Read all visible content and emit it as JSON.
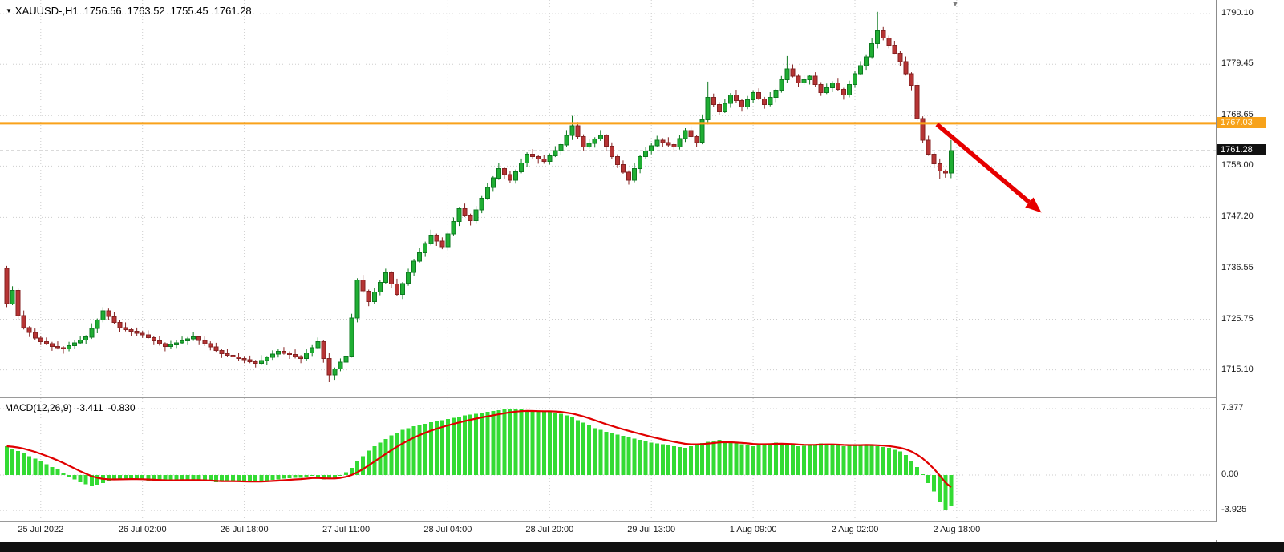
{
  "window": {
    "info": {
      "marker": "▼",
      "symbol_period": "XAUUSD-,H1",
      "open": "1756.56",
      "high": "1763.52",
      "low": "1755.45",
      "close": "1761.28"
    },
    "macd_info": {
      "name": "MACD(12,26,9)",
      "value": "-3.411",
      "signal": "-0.830"
    },
    "shift_marker": "▼"
  },
  "axis": {
    "hline_label": "1767.03",
    "bid_label": "1761.28"
  },
  "colors": {
    "grid": "#cdcdcd",
    "candle_up": "#1fae33",
    "candle_up_border": "#0e7a20",
    "candle_down": "#b63434",
    "candle_down_border": "#842222",
    "macd_bar": "#33db33",
    "macd_signal": "#e00000",
    "hline": "#f9a21b",
    "bid_line": "#b4b4b4",
    "arrow": "#e60000"
  },
  "chart_data": {
    "type": "candlestick_with_macd",
    "title": "XAUUSD- H1 candlestick chart with MACD(12,26,9)",
    "price_axis_ticks": [
      1790.1,
      1779.45,
      1768.65,
      1758.0,
      1747.2,
      1736.55,
      1725.75,
      1715.1
    ],
    "price_ylim": [
      1709.3,
      1793.0
    ],
    "hline": 1767.03,
    "bid": 1761.28,
    "x_ticks": [
      {
        "label": "25 Jul 2022",
        "candle": 6
      },
      {
        "label": "26 Jul 02:00",
        "candle": 24
      },
      {
        "label": "26 Jul 18:00",
        "candle": 42
      },
      {
        "label": "27 Jul 11:00",
        "candle": 60
      },
      {
        "label": "28 Jul 04:00",
        "candle": 78
      },
      {
        "label": "28 Jul 20:00",
        "candle": 96
      },
      {
        "label": "29 Jul 13:00",
        "candle": 114
      },
      {
        "label": "1 Aug 09:00",
        "candle": 132
      },
      {
        "label": "2 Aug 02:00",
        "candle": 150
      },
      {
        "label": "2 Aug 18:00",
        "candle": 168
      }
    ],
    "first_open": 1736.5,
    "closes": [
      1729.0,
      1731.8,
      1726.5,
      1724.0,
      1723.0,
      1721.8,
      1721.0,
      1720.6,
      1720.0,
      1719.8,
      1719.5,
      1720.2,
      1720.8,
      1721.4,
      1722.0,
      1723.8,
      1725.6,
      1727.5,
      1726.3,
      1725.1,
      1724.0,
      1723.6,
      1723.2,
      1722.8,
      1722.5,
      1721.9,
      1721.2,
      1720.6,
      1720.0,
      1720.4,
      1720.8,
      1721.2,
      1721.6,
      1722.0,
      1721.3,
      1720.6,
      1719.9,
      1719.2,
      1718.5,
      1718.2,
      1717.8,
      1717.5,
      1717.2,
      1716.8,
      1716.5,
      1717.1,
      1717.7,
      1718.4,
      1719.0,
      1718.6,
      1718.3,
      1717.9,
      1717.5,
      1718.7,
      1719.8,
      1721.0,
      1717.5,
      1714.0,
      1715.3,
      1716.7,
      1718.0,
      1726.0,
      1734.0,
      1731.7,
      1729.5,
      1731.5,
      1733.5,
      1735.5,
      1733.2,
      1731.0,
      1733.3,
      1735.6,
      1738.0,
      1739.8,
      1741.7,
      1743.5,
      1742.2,
      1741.0,
      1743.7,
      1746.3,
      1749.0,
      1747.7,
      1746.5,
      1748.8,
      1751.2,
      1753.5,
      1755.5,
      1757.5,
      1756.2,
      1755.0,
      1756.8,
      1758.7,
      1760.5,
      1760.0,
      1759.5,
      1759.0,
      1760.2,
      1761.3,
      1762.5,
      1764.5,
      1766.5,
      1764.2,
      1762.0,
      1762.8,
      1763.7,
      1764.5,
      1762.2,
      1760.0,
      1758.3,
      1756.7,
      1755.0,
      1757.5,
      1760.0,
      1761.2,
      1762.3,
      1763.5,
      1763.0,
      1762.5,
      1762.0,
      1763.8,
      1765.5,
      1764.2,
      1763.0,
      1767.8,
      1772.5,
      1771.0,
      1769.5,
      1771.2,
      1773.0,
      1771.8,
      1770.5,
      1772.0,
      1773.5,
      1772.2,
      1771.0,
      1772.5,
      1774.0,
      1776.2,
      1778.5,
      1777.0,
      1775.5,
      1776.2,
      1777.0,
      1775.2,
      1773.5,
      1774.5,
      1775.5,
      1774.2,
      1773.0,
      1775.2,
      1777.5,
      1779.2,
      1781.0,
      1783.8,
      1786.5,
      1785.0,
      1783.5,
      1781.8,
      1780.0,
      1777.5,
      1775.0,
      1768.0,
      1763.5,
      1760.5,
      1758.5,
      1757.0,
      1756.56,
      1761.28
    ],
    "wick_overrides": {
      "57": {
        "low": 1712.5
      },
      "100": {
        "high": 1768.6
      },
      "124": {
        "high": 1775.8
      },
      "138": {
        "high": 1781.2
      },
      "154": {
        "high": 1790.5
      },
      "165": {
        "low": 1755.2
      },
      "167": {
        "high": 1763.52,
        "low": 1755.45
      }
    },
    "arrow": {
      "from": {
        "candle": 164.5,
        "price": 1766.8
      },
      "to": {
        "candle": 183,
        "price": 1748.2
      }
    },
    "macd": {
      "type": "bar",
      "signal_method": "EMA9",
      "ticks": [
        7.377,
        0,
        -3.925
      ],
      "ylim": [
        -4.98,
        8.53
      ],
      "histogram": [
        3.2,
        2.93,
        2.67,
        2.4,
        2.1,
        1.8,
        1.5,
        1.2,
        0.9,
        0.6,
        0.2,
        -0.2,
        -0.5,
        -0.8,
        -1.0,
        -1.2,
        -1.05,
        -0.9,
        -0.7,
        -0.5,
        -0.47,
        -0.43,
        -0.4,
        -0.47,
        -0.53,
        -0.6,
        -0.63,
        -0.67,
        -0.7,
        -0.63,
        -0.57,
        -0.5,
        -0.53,
        -0.57,
        -0.6,
        -0.67,
        -0.73,
        -0.8,
        -0.77,
        -0.73,
        -0.7,
        -0.73,
        -0.77,
        -0.8,
        -0.73,
        -0.67,
        -0.6,
        -0.53,
        -0.47,
        -0.4,
        -0.37,
        -0.33,
        -0.3,
        -0.2,
        -0.1,
        -0.3,
        -0.5,
        -0.45,
        -0.4,
        -0.05,
        0.3,
        0.8,
        1.5,
        2.1,
        2.7,
        3.2,
        3.6,
        4.0,
        4.4,
        4.7,
        5.0,
        5.2,
        5.4,
        5.55,
        5.7,
        5.85,
        6.0,
        6.1,
        6.2,
        6.35,
        6.5,
        6.6,
        6.7,
        6.8,
        6.9,
        7.0,
        7.1,
        7.2,
        7.3,
        7.35,
        7.377,
        7.3,
        7.2,
        7.1,
        7.0,
        7.05,
        7.1,
        6.95,
        6.8,
        6.6,
        6.4,
        6.1,
        5.8,
        5.5,
        5.2,
        5.0,
        4.8,
        4.65,
        4.5,
        4.35,
        4.2,
        4.05,
        3.9,
        3.75,
        3.6,
        3.5,
        3.4,
        3.3,
        3.2,
        3.1,
        3.0,
        3.2,
        3.4,
        3.55,
        3.7,
        3.8,
        3.9,
        3.75,
        3.6,
        3.5,
        3.4,
        3.3,
        3.2,
        3.3,
        3.4,
        3.5,
        3.6,
        3.5,
        3.4,
        3.3,
        3.2,
        3.25,
        3.3,
        3.4,
        3.5,
        3.45,
        3.4,
        3.3,
        3.2,
        3.25,
        3.3,
        3.35,
        3.4,
        3.3,
        3.2,
        3.1,
        3.0,
        2.8,
        2.6,
        2.2,
        1.6,
        0.9,
        0.1,
        -0.9,
        -1.8,
        -3.0,
        -3.9,
        -3.411
      ]
    }
  }
}
